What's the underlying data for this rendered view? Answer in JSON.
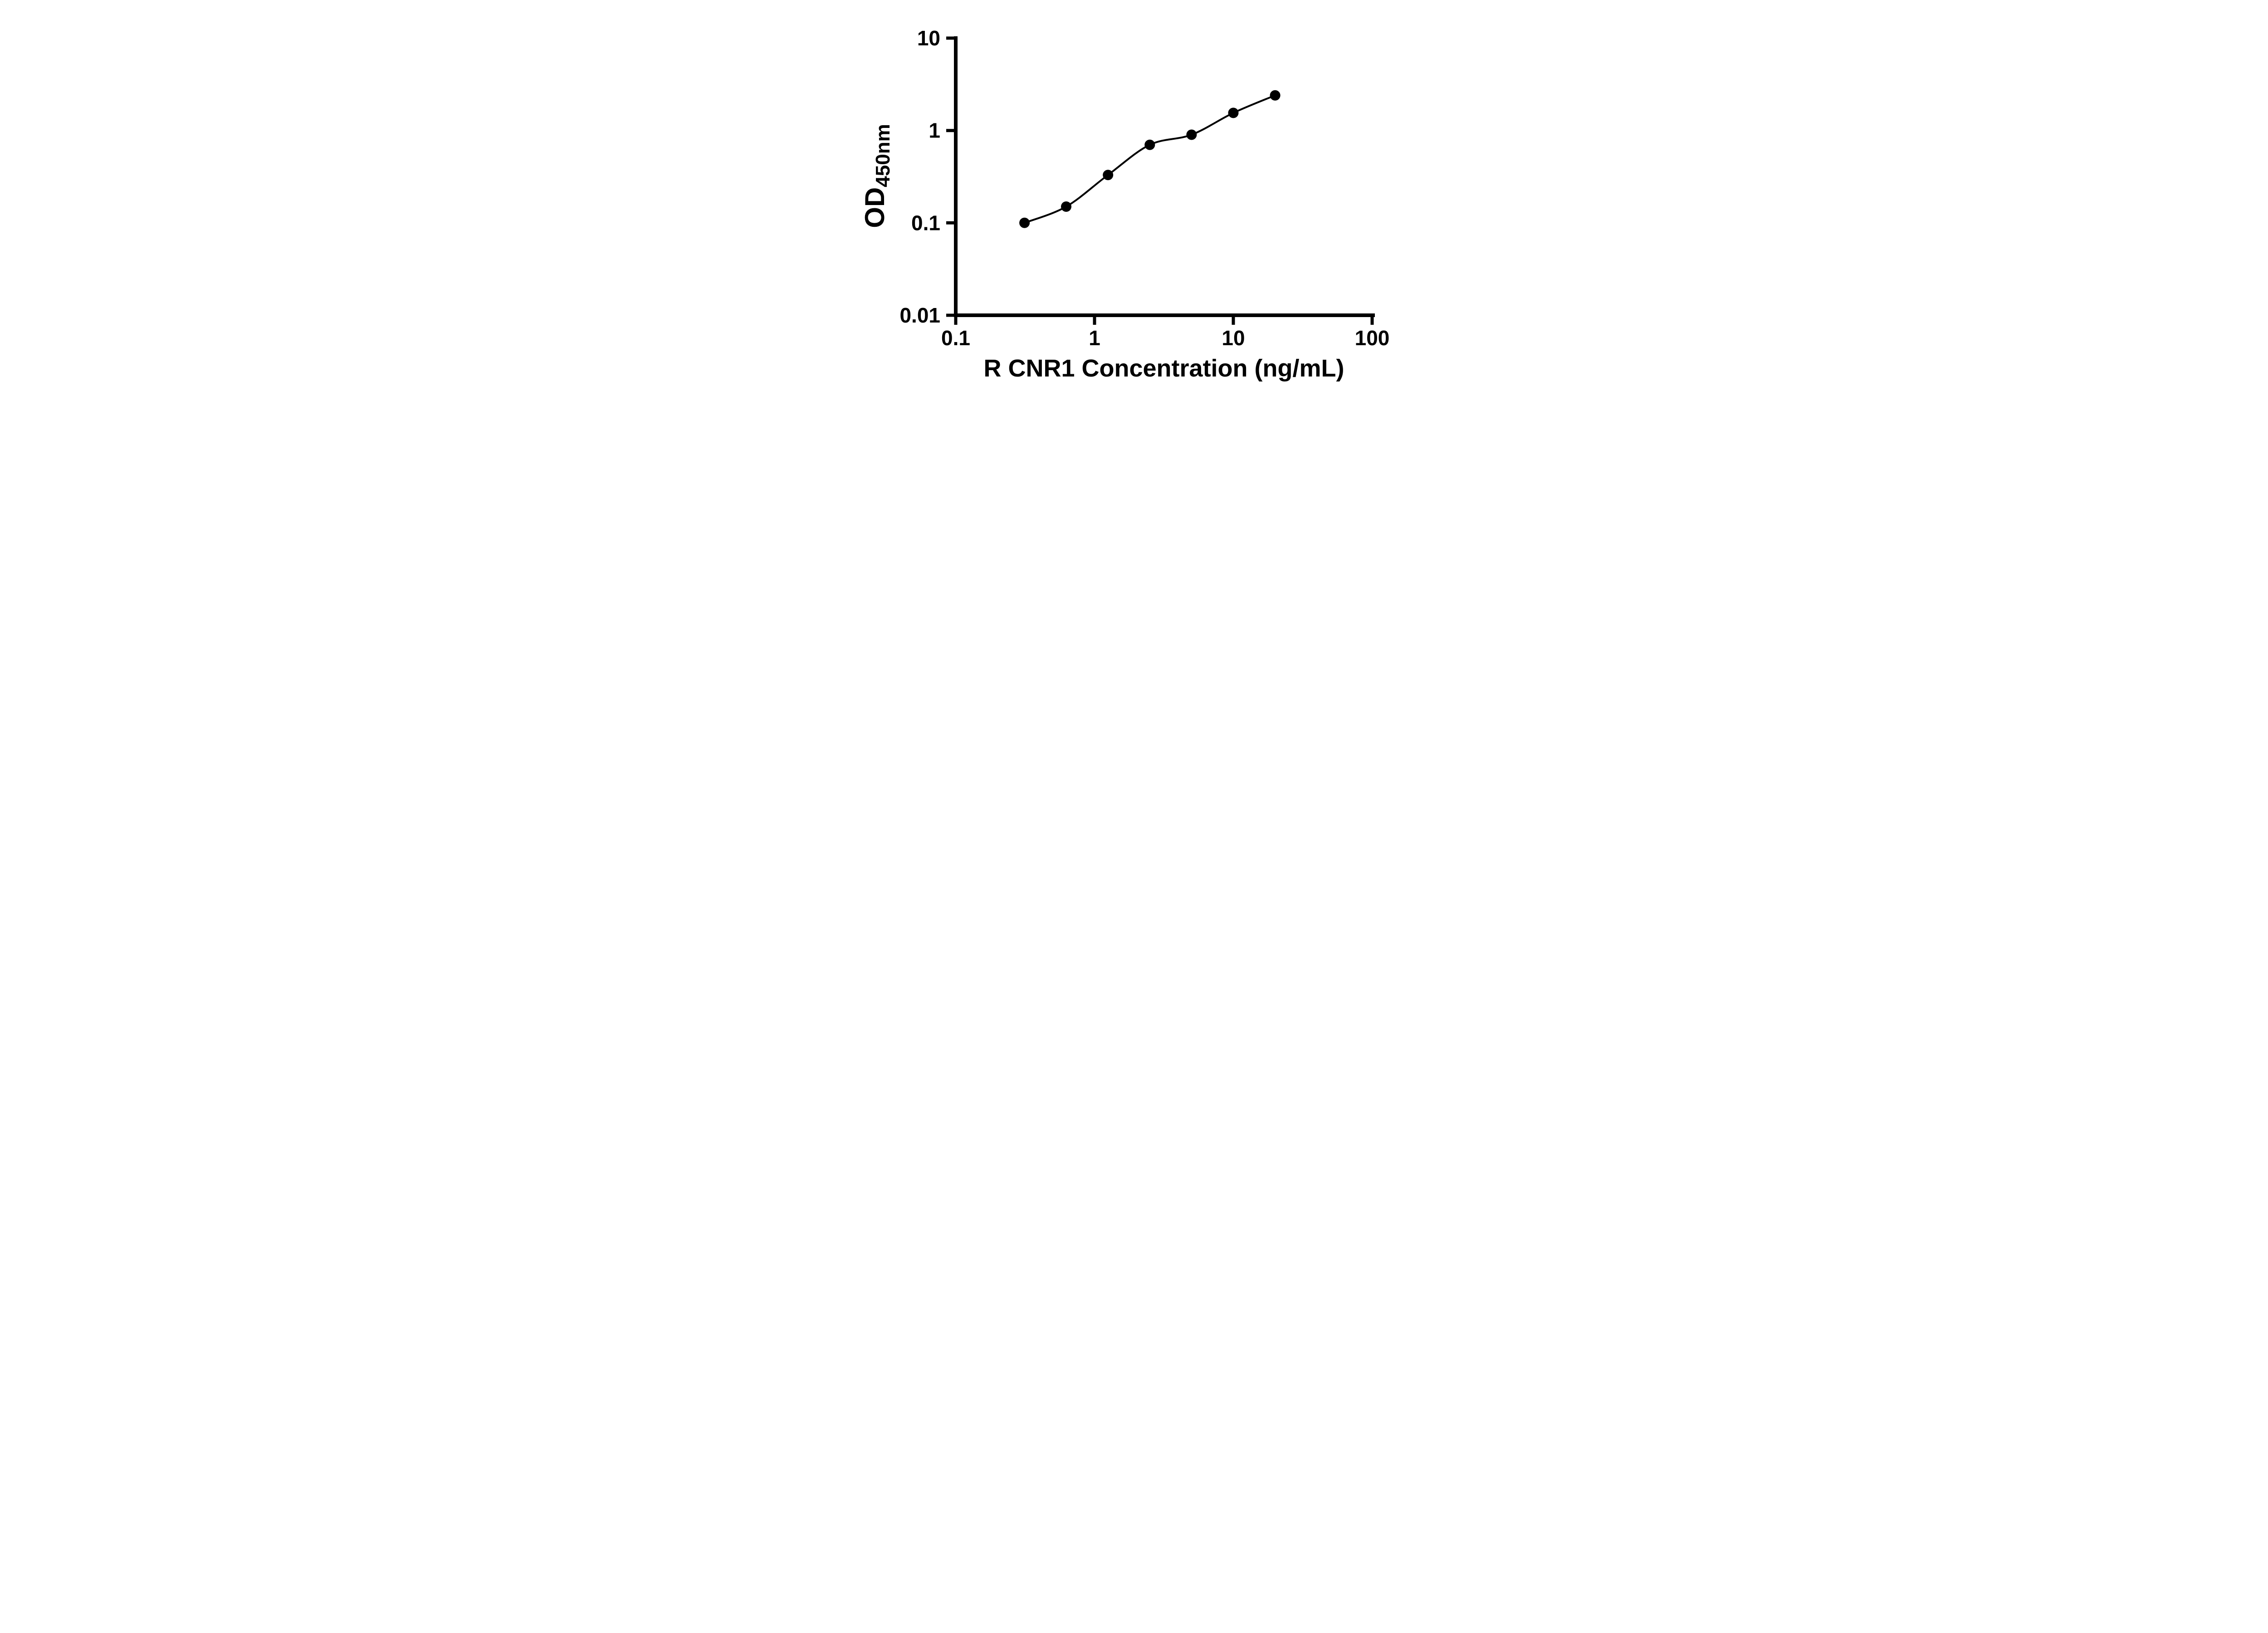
{
  "chart_data": {
    "type": "scatter",
    "title": "",
    "xlabel": "R CNR1 Concentration (ng/mL)",
    "ylabel": {
      "prefix": "OD",
      "subscript": "450nm"
    },
    "x_scale": "log10",
    "y_scale": "log10",
    "xlim": [
      0.1,
      100
    ],
    "ylim": [
      0.01,
      10
    ],
    "grid": false,
    "legend": "none",
    "x_ticks": [
      {
        "value": 0.1,
        "label": "0.1"
      },
      {
        "value": 1,
        "label": "1"
      },
      {
        "value": 10,
        "label": "10"
      },
      {
        "value": 100,
        "label": "100"
      }
    ],
    "y_ticks": [
      {
        "value": 0.01,
        "label": "0.01"
      },
      {
        "value": 0.1,
        "label": "0.1"
      },
      {
        "value": 1,
        "label": "1"
      },
      {
        "value": 10,
        "label": "10"
      }
    ],
    "series": [
      {
        "marker": "filled-circle",
        "fit_line": true,
        "points": [
          {
            "x": 0.313,
            "y": 0.1
          },
          {
            "x": 0.625,
            "y": 0.15
          },
          {
            "x": 1.25,
            "y": 0.33
          },
          {
            "x": 2.5,
            "y": 0.7
          },
          {
            "x": 5,
            "y": 0.9
          },
          {
            "x": 10,
            "y": 1.55
          },
          {
            "x": 20,
            "y": 2.4
          }
        ]
      }
    ],
    "colors": {
      "ink": "#000000",
      "background": "#ffffff"
    }
  }
}
